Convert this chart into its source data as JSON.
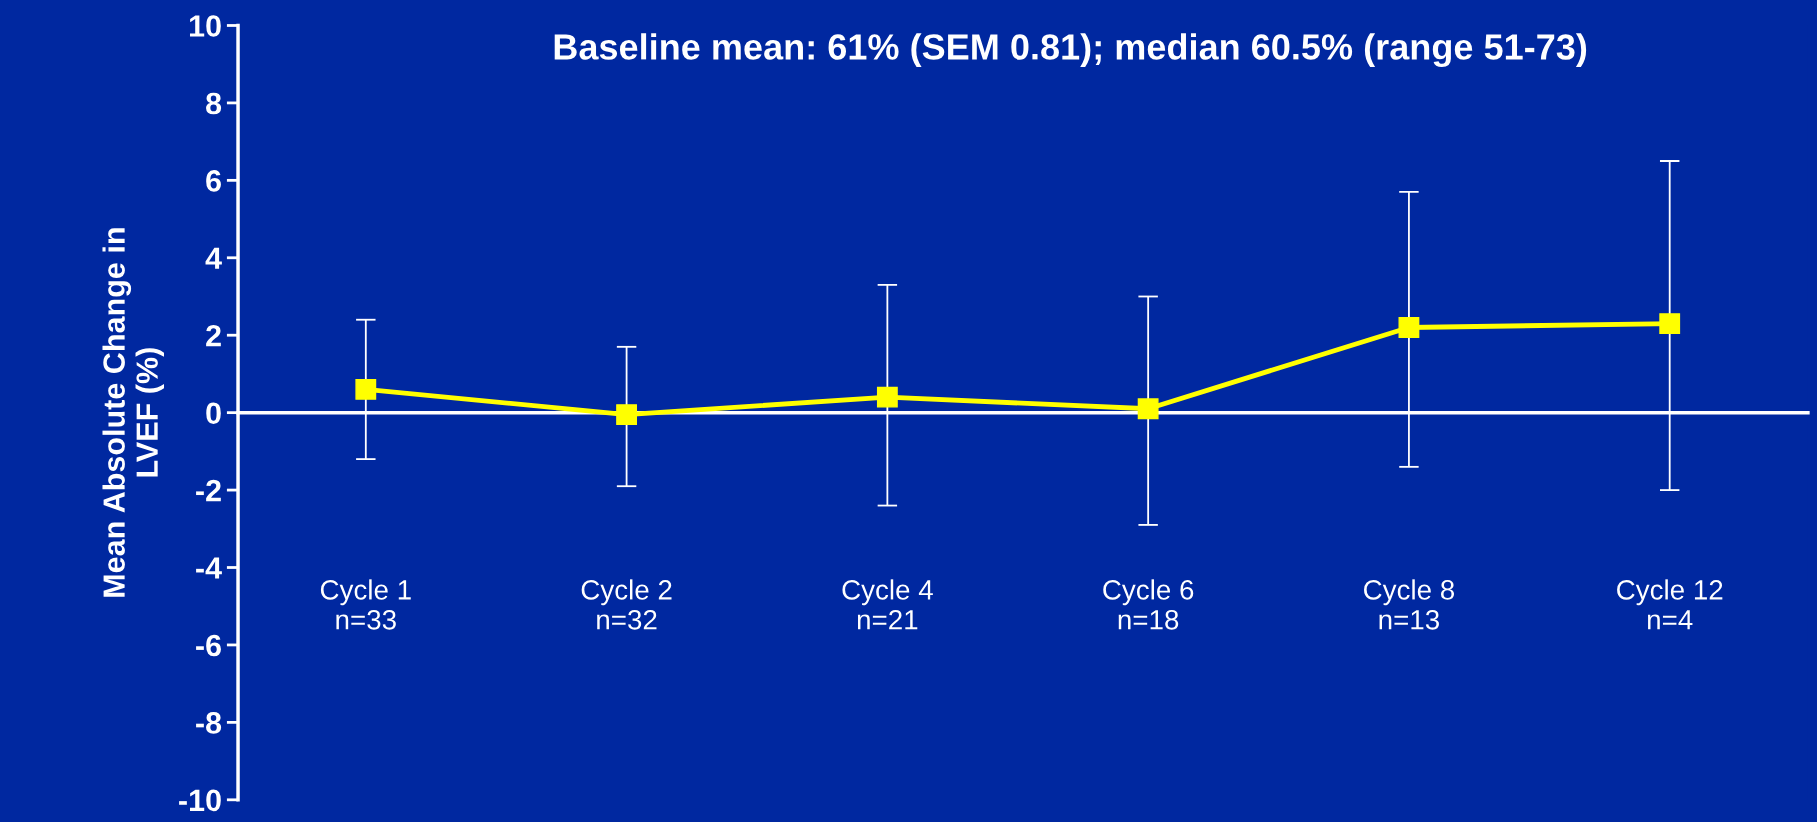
{
  "chart_data": {
    "type": "line",
    "title": "Baseline mean: 61% (SEM 0.81); median 60.5% (range 51-73)",
    "ylabel": "Mean Absolute Change in\nLVEF (%)",
    "categories": [
      "Cycle 1\nn=33",
      "Cycle 2\nn=32",
      "Cycle 4\nn=21",
      "Cycle 6\nn=18",
      "Cycle 8\nn=13",
      "Cycle 12\nn=4"
    ],
    "series": [
      {
        "color": "#ffff00",
        "values": [
          0.6,
          -0.05,
          0.4,
          0.1,
          2.2,
          2.3
        ],
        "errors": [
          [
            -1.2,
            2.4
          ],
          [
            -1.9,
            1.7
          ],
          [
            -2.4,
            3.3
          ],
          [
            -2.9,
            3.0
          ],
          [
            -1.4,
            5.7
          ],
          [
            -2.0,
            6.5
          ]
        ]
      }
    ],
    "ylim": [
      -10,
      10
    ],
    "yticks": [
      -10,
      -8,
      -6,
      -4,
      -2,
      0,
      2,
      4,
      6,
      8,
      10
    ],
    "marker": "square",
    "line_style": "solid"
  }
}
